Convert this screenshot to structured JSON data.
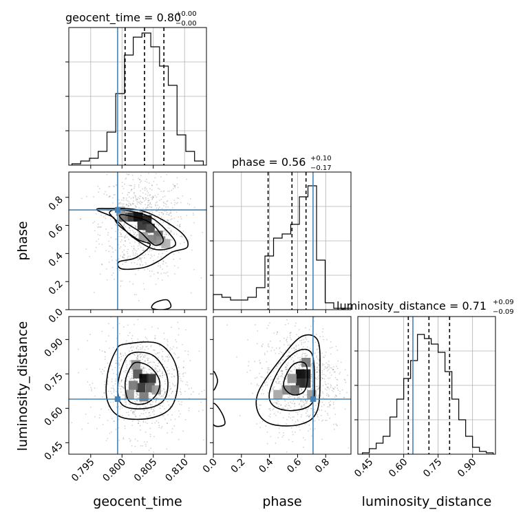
{
  "truth_color": "#4682b4",
  "chart_data": [
    {
      "type": "histogram",
      "parameter": "geocent_time",
      "title": {
        "main": "geocent_time = 0.80",
        "sup": "+0.00",
        "sub": "−0.00"
      },
      "xlim": [
        0.7915,
        0.8135
      ],
      "bin_edges": [
        0.792,
        0.7934,
        0.7948,
        0.7962,
        0.7976,
        0.799,
        0.8004,
        0.8018,
        0.8032,
        0.8046,
        0.806,
        0.8074,
        0.8088,
        0.8102,
        0.8116,
        0.813
      ],
      "counts": [
        0.01,
        0.03,
        0.05,
        0.1,
        0.24,
        0.52,
        0.8,
        0.93,
        0.96,
        0.86,
        0.72,
        0.58,
        0.22,
        0.1,
        0.03
      ],
      "quantiles": [
        0.8005,
        0.8036,
        0.8067
      ],
      "truth": 0.7993,
      "xticks": [
        "0.795",
        "0.800",
        "0.805",
        "0.810"
      ],
      "xticks_values": [
        0.795,
        0.8,
        0.805,
        0.81
      ],
      "grid": true
    },
    {
      "type": "histogram",
      "parameter": "phase",
      "title": {
        "main": "phase = 0.56",
        "sup": "+0.10",
        "sub": "−0.17"
      },
      "xlim": [
        0.0,
        0.98
      ],
      "bin_edges": [
        0.0,
        0.0613,
        0.1225,
        0.1838,
        0.245,
        0.3063,
        0.3675,
        0.4288,
        0.49,
        0.5513,
        0.6125,
        0.6738,
        0.735,
        0.7963,
        0.8575,
        0.9188,
        0.98
      ],
      "counts": [
        0.11,
        0.09,
        0.07,
        0.07,
        0.09,
        0.16,
        0.39,
        0.52,
        0.55,
        0.62,
        0.82,
        0.9,
        0.36,
        0.05,
        0.01,
        0.01
      ],
      "quantiles": [
        0.39,
        0.56,
        0.66
      ],
      "truth": 0.71,
      "xticks": [
        "0.0",
        "0.2",
        "0.4",
        "0.6",
        "0.8"
      ],
      "xticks_values": [
        0.0,
        0.2,
        0.4,
        0.6,
        0.8
      ],
      "grid": true
    },
    {
      "type": "histogram",
      "parameter": "luminosity_distance",
      "title": {
        "main": "luminosity_distance = 0.71",
        "sup": "+0.09",
        "sub": "−0.09"
      },
      "xlim": [
        0.4,
        1.0
      ],
      "bin_edges": [
        0.42,
        0.45,
        0.48,
        0.51,
        0.54,
        0.57,
        0.6,
        0.63,
        0.66,
        0.69,
        0.72,
        0.75,
        0.78,
        0.81,
        0.84,
        0.87,
        0.9,
        0.93,
        0.96,
        0.99
      ],
      "counts": [
        0.01,
        0.04,
        0.08,
        0.13,
        0.27,
        0.4,
        0.55,
        0.68,
        0.87,
        0.84,
        0.8,
        0.74,
        0.6,
        0.4,
        0.25,
        0.13,
        0.05,
        0.02,
        0.01
      ],
      "quantiles": [
        0.62,
        0.71,
        0.8
      ],
      "truth": 0.64,
      "xticks": [
        "0.45",
        "0.60",
        "0.75",
        "0.90"
      ],
      "xticks_values": [
        0.45,
        0.6,
        0.75,
        0.9
      ],
      "grid": true
    },
    {
      "type": "contour_2d",
      "x_parameter": "geocent_time",
      "y_parameter": "phase",
      "xlim": [
        0.7915,
        0.8135
      ],
      "ylim": [
        0.0,
        0.98
      ],
      "truth": [
        0.7993,
        0.71
      ],
      "contours": [
        {
          "level": "inner",
          "points": [
            [
              0.801,
              0.67
            ],
            [
              0.8045,
              0.62
            ],
            [
              0.8066,
              0.5
            ],
            [
              0.8052,
              0.46
            ],
            [
              0.803,
              0.55
            ],
            [
              0.8006,
              0.62
            ],
            [
              0.7996,
              0.67
            ]
          ]
        },
        {
          "level": "middle",
          "points": [
            [
              0.7998,
              0.71
            ],
            [
              0.8045,
              0.66
            ],
            [
              0.808,
              0.52
            ],
            [
              0.8083,
              0.45
            ],
            [
              0.8052,
              0.43
            ],
            [
              0.8016,
              0.52
            ],
            [
              0.7997,
              0.61
            ],
            [
              0.798,
              0.69
            ]
          ]
        },
        {
          "level": "outer",
          "points": [
            [
              0.7975,
              0.72
            ],
            [
              0.8035,
              0.7
            ],
            [
              0.8092,
              0.56
            ],
            [
              0.8105,
              0.45
            ],
            [
              0.808,
              0.41
            ],
            [
              0.806,
              0.35
            ],
            [
              0.8035,
              0.3
            ],
            [
              0.8,
              0.29
            ],
            [
              0.7995,
              0.34
            ],
            [
              0.8022,
              0.37
            ],
            [
              0.8045,
              0.46
            ],
            [
              0.8025,
              0.5
            ],
            [
              0.7995,
              0.6
            ],
            [
              0.7985,
              0.66
            ],
            [
              0.796,
              0.71
            ]
          ]
        },
        {
          "level": "outer",
          "points": [
            [
              0.8048,
              0.01
            ],
            [
              0.8053,
              0.05
            ],
            [
              0.8072,
              0.07
            ],
            [
              0.8078,
              0.02
            ],
            [
              0.8065,
              0.0
            ]
          ]
        }
      ],
      "density": [
        {
          "x": 0.8012,
          "y": 0.66,
          "w": 0.8
        },
        {
          "x": 0.8026,
          "y": 0.66,
          "w": 1.0
        },
        {
          "x": 0.804,
          "y": 0.64,
          "w": 0.9
        },
        {
          "x": 0.8032,
          "y": 0.6,
          "w": 0.8
        },
        {
          "x": 0.8045,
          "y": 0.58,
          "w": 0.7
        },
        {
          "x": 0.8058,
          "y": 0.53,
          "w": 0.55
        },
        {
          "x": 0.8048,
          "y": 0.5,
          "w": 0.45
        },
        {
          "x": 0.8062,
          "y": 0.49,
          "w": 0.4
        },
        {
          "x": 0.8002,
          "y": 0.66,
          "w": 0.55
        },
        {
          "x": 0.7998,
          "y": 0.7,
          "w": 0.35
        },
        {
          "x": 0.8034,
          "y": 0.52,
          "w": 0.35
        },
        {
          "x": 0.807,
          "y": 0.47,
          "w": 0.25
        }
      ]
    },
    {
      "type": "contour_2d",
      "x_parameter": "geocent_time",
      "y_parameter": "luminosity_distance",
      "xlim": [
        0.7915,
        0.8135
      ],
      "ylim": [
        0.4,
        1.0
      ],
      "truth": [
        0.7993,
        0.64
      ],
      "contours": [
        {
          "level": "inner",
          "points": [
            [
              0.8022,
              0.8
            ],
            [
              0.8045,
              0.78
            ],
            [
              0.806,
              0.72
            ],
            [
              0.8055,
              0.66
            ],
            [
              0.8036,
              0.62
            ],
            [
              0.8012,
              0.63
            ],
            [
              0.8005,
              0.7
            ],
            [
              0.801,
              0.76
            ]
          ]
        },
        {
          "level": "middle",
          "points": [
            [
              0.8015,
              0.84
            ],
            [
              0.805,
              0.83
            ],
            [
              0.8072,
              0.74
            ],
            [
              0.8068,
              0.64
            ],
            [
              0.804,
              0.6
            ],
            [
              0.8003,
              0.61
            ],
            [
              0.7993,
              0.68
            ],
            [
              0.8,
              0.78
            ]
          ]
        },
        {
          "level": "outer",
          "points": [
            [
              0.8005,
              0.88
            ],
            [
              0.806,
              0.88
            ],
            [
              0.8088,
              0.77
            ],
            [
              0.8082,
              0.62
            ],
            [
              0.805,
              0.56
            ],
            [
              0.8,
              0.56
            ],
            [
              0.7977,
              0.63
            ],
            [
              0.7977,
              0.75
            ],
            [
              0.799,
              0.85
            ]
          ]
        }
      ],
      "density": [
        {
          "x": 0.8025,
          "y": 0.75,
          "w": 0.65
        },
        {
          "x": 0.8035,
          "y": 0.73,
          "w": 1.0
        },
        {
          "x": 0.8047,
          "y": 0.73,
          "w": 0.8
        },
        {
          "x": 0.803,
          "y": 0.69,
          "w": 0.8
        },
        {
          "x": 0.8045,
          "y": 0.69,
          "w": 0.6
        },
        {
          "x": 0.8018,
          "y": 0.7,
          "w": 0.5
        },
        {
          "x": 0.8035,
          "y": 0.65,
          "w": 0.5
        },
        {
          "x": 0.8022,
          "y": 0.79,
          "w": 0.4
        },
        {
          "x": 0.8055,
          "y": 0.68,
          "w": 0.35
        },
        {
          "x": 0.8012,
          "y": 0.66,
          "w": 0.35
        }
      ]
    },
    {
      "type": "contour_2d",
      "x_parameter": "phase",
      "y_parameter": "luminosity_distance",
      "xlim": [
        0.0,
        0.98
      ],
      "ylim": [
        0.4,
        1.0
      ],
      "truth": [
        0.71,
        0.64
      ],
      "contours": [
        {
          "level": "inner",
          "points": [
            [
              0.6,
              0.8
            ],
            [
              0.66,
              0.79
            ],
            [
              0.67,
              0.72
            ],
            [
              0.64,
              0.67
            ],
            [
              0.56,
              0.66
            ],
            [
              0.5,
              0.7
            ],
            [
              0.54,
              0.77
            ]
          ]
        },
        {
          "level": "middle",
          "points": [
            [
              0.6,
              0.85
            ],
            [
              0.7,
              0.84
            ],
            [
              0.72,
              0.72
            ],
            [
              0.7,
              0.62
            ],
            [
              0.56,
              0.59
            ],
            [
              0.43,
              0.61
            ],
            [
              0.4,
              0.67
            ],
            [
              0.48,
              0.78
            ]
          ]
        },
        {
          "level": "outer",
          "points": [
            [
              0.62,
              0.91
            ],
            [
              0.74,
              0.9
            ],
            [
              0.76,
              0.77
            ],
            [
              0.74,
              0.59
            ],
            [
              0.62,
              0.53
            ],
            [
              0.42,
              0.53
            ],
            [
              0.32,
              0.58
            ],
            [
              0.32,
              0.67
            ],
            [
              0.46,
              0.8
            ]
          ]
        },
        {
          "level": "outer",
          "points": [
            [
              0.0,
              0.76
            ],
            [
              0.03,
              0.72
            ],
            [
              0.0,
              0.68
            ]
          ]
        },
        {
          "level": "outer",
          "points": [
            [
              0.0,
              0.62
            ],
            [
              0.06,
              0.58
            ],
            [
              0.08,
              0.53
            ],
            [
              0.0,
              0.53
            ]
          ]
        }
      ],
      "density": [
        {
          "x": 0.62,
          "y": 0.75,
          "w": 1.0
        },
        {
          "x": 0.66,
          "y": 0.75,
          "w": 0.9
        },
        {
          "x": 0.62,
          "y": 0.71,
          "w": 0.85
        },
        {
          "x": 0.66,
          "y": 0.71,
          "w": 0.8
        },
        {
          "x": 0.58,
          "y": 0.68,
          "w": 0.55
        },
        {
          "x": 0.52,
          "y": 0.68,
          "w": 0.45
        },
        {
          "x": 0.56,
          "y": 0.73,
          "w": 0.4
        },
        {
          "x": 0.66,
          "y": 0.8,
          "w": 0.5
        },
        {
          "x": 0.46,
          "y": 0.66,
          "w": 0.3
        },
        {
          "x": 0.7,
          "y": 0.66,
          "w": 0.35
        }
      ]
    }
  ],
  "axes": {
    "geocent_time": {
      "label": "geocent_time",
      "ticks": [
        "0.795",
        "0.800",
        "0.805",
        "0.810"
      ],
      "tick_values": [
        0.795,
        0.8,
        0.805,
        0.81
      ]
    },
    "phase": {
      "label": "phase",
      "ticks": [
        "0.0",
        "0.2",
        "0.4",
        "0.6",
        "0.8"
      ],
      "tick_values": [
        0.0,
        0.2,
        0.4,
        0.6,
        0.8
      ]
    },
    "luminosity_distance": {
      "label": "luminosity_distance",
      "ticks": [
        "0.45",
        "0.60",
        "0.75",
        "0.90"
      ],
      "tick_values": [
        0.45,
        0.6,
        0.75,
        0.9
      ]
    }
  }
}
